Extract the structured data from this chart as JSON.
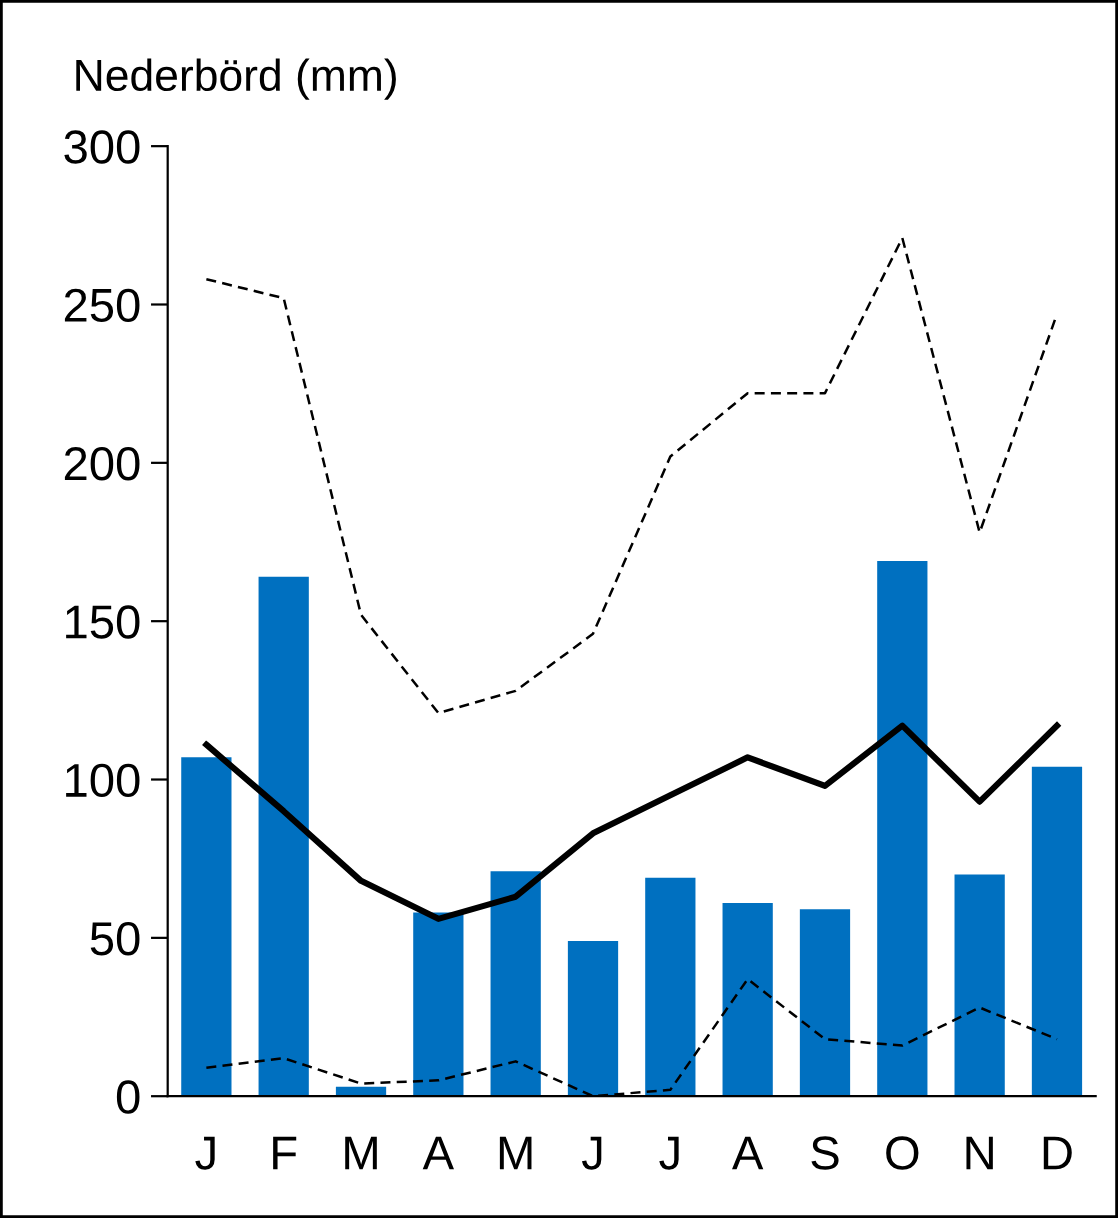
{
  "chart_data": {
    "type": "bar",
    "ylabel": "Nederbörd (mm)",
    "categories": [
      "J",
      "F",
      "M",
      "A",
      "M",
      "J",
      "J",
      "A",
      "S",
      "O",
      "N",
      "D"
    ],
    "series": [
      {
        "color": "#0070c0",
        "values": [
          107,
          164,
          3,
          58,
          71,
          49,
          69,
          61,
          59,
          169,
          70,
          104
        ]
      },
      {
        "type": "line",
        "color": "#000000",
        "line_style": "solid",
        "values": [
          111,
          90,
          68,
          56,
          63,
          83,
          95,
          107,
          98,
          117,
          93,
          117
        ]
      },
      {
        "type": "line",
        "color": "#000000",
        "line_style": "dashed",
        "values": [
          258,
          252,
          152,
          121,
          128,
          146,
          202,
          222,
          222,
          271,
          178,
          247
        ]
      },
      {
        "type": "line",
        "color": "#000000",
        "line_style": "dashed",
        "values": [
          9,
          12,
          4,
          5,
          11,
          0,
          2,
          37,
          18,
          16,
          28,
          18
        ]
      }
    ],
    "ylim": [
      0,
      300
    ],
    "yticks": [
      0,
      50,
      100,
      150,
      200,
      250,
      300
    ],
    "grid": false,
    "legend": false
  }
}
